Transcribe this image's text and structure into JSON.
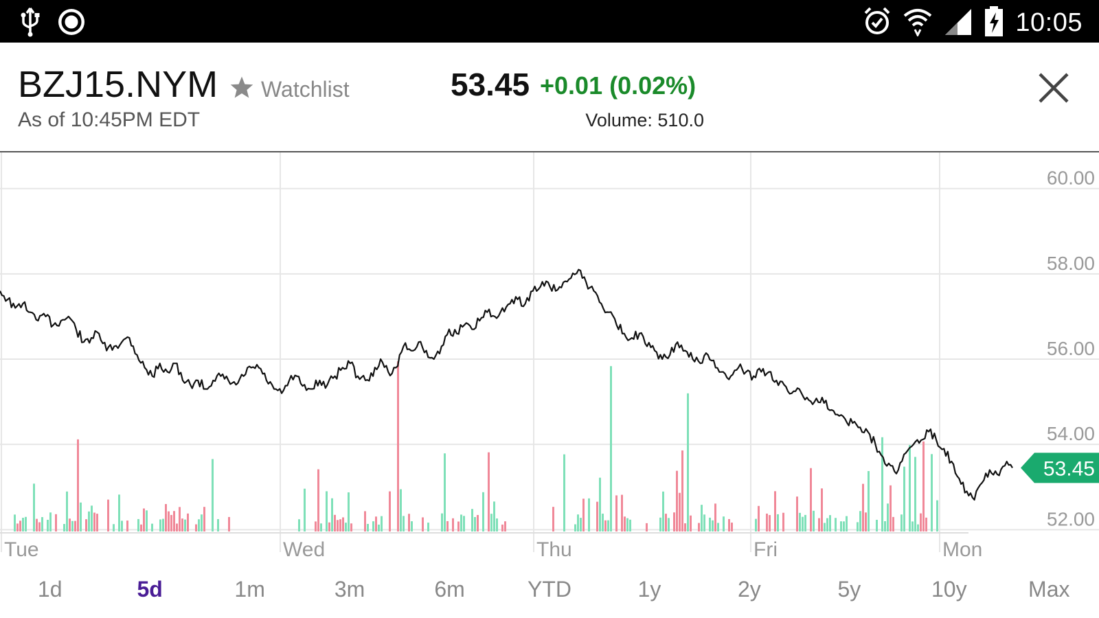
{
  "status_bar": {
    "time": "10:05",
    "left_icons": [
      "usb-icon",
      "sync-icon"
    ],
    "right_icons": [
      "alarm-icon",
      "wifi-icon",
      "signal-icon",
      "battery-charging-icon"
    ]
  },
  "quote": {
    "symbol": "BZJ15.NYM",
    "watchlist_label": "Watchlist",
    "as_of": "As of 10:45PM EDT",
    "price": "53.45",
    "change": "+0.01 (0.02%)",
    "volume": "Volume: 510.0",
    "change_color": "#1a8a2a"
  },
  "chart_data": {
    "type": "line",
    "y_ticks": [
      "60.00",
      "58.00",
      "56.00",
      "54.00",
      "52.00"
    ],
    "ylim": [
      51.7,
      60.3
    ],
    "x_labels": [
      "Tue",
      "Wed",
      "Thu",
      "Fri",
      "Mon"
    ],
    "current_price_label": "53.45",
    "current_price_color": "#1aaa6e",
    "grid": true,
    "series": [
      {
        "values": [
          57.6,
          57.4,
          57.2,
          57.3,
          57.1,
          56.9,
          57.0,
          56.8,
          56.9,
          57.0,
          56.7,
          56.4,
          56.5,
          56.6,
          56.2,
          56.3,
          56.4,
          56.5,
          56.1,
          55.8,
          55.6,
          55.9,
          55.7,
          55.9,
          55.5,
          55.4,
          55.5,
          55.3,
          55.5,
          55.6,
          55.5,
          55.4,
          55.6,
          55.8,
          55.8,
          55.5,
          55.3,
          55.2,
          55.5,
          55.6,
          55.4,
          55.3,
          55.5,
          55.4,
          55.6,
          55.8,
          55.9,
          55.6,
          55.5,
          55.6,
          56.0,
          55.7,
          55.8,
          56.3,
          56.2,
          56.4,
          56.2,
          56.0,
          56.3,
          56.7,
          56.6,
          56.8,
          56.7,
          56.9,
          57.1,
          57.0,
          57.2,
          57.3,
          57.4,
          57.3,
          57.6,
          57.7,
          57.8,
          57.6,
          57.8,
          57.9,
          58.1,
          57.8,
          57.6,
          57.3,
          57.1,
          56.8,
          56.6,
          56.5,
          56.6,
          56.3,
          56.2,
          56.0,
          56.1,
          56.4,
          56.2,
          56.0,
          55.9,
          56.1,
          55.8,
          55.7,
          55.6,
          55.8,
          55.7,
          55.6,
          55.7,
          55.7,
          55.5,
          55.4,
          55.2,
          55.3,
          55.1,
          55.0,
          55.1,
          54.8,
          54.7,
          54.6,
          54.5,
          54.4,
          54.3,
          54.0,
          53.7,
          53.5,
          53.4,
          53.8,
          54.0,
          54.1,
          54.3,
          54.1,
          53.9,
          53.6,
          53.2,
          52.9,
          52.7,
          53.1,
          53.4,
          53.3,
          53.5,
          53.45
        ],
        "color": "#111111"
      }
    ],
    "volume_bars": {
      "colors": [
        "#7ee0b8",
        "#f08898"
      ],
      "max": 100
    }
  },
  "time_ranges": {
    "items": [
      "1d",
      "5d",
      "1m",
      "3m",
      "6m",
      "YTD",
      "1y",
      "2y",
      "5y",
      "10y",
      "Max"
    ],
    "active_index": 1,
    "active_color": "#4a1d96"
  },
  "actions": {
    "close_icon": "close-icon",
    "star_icon": "star-icon"
  }
}
